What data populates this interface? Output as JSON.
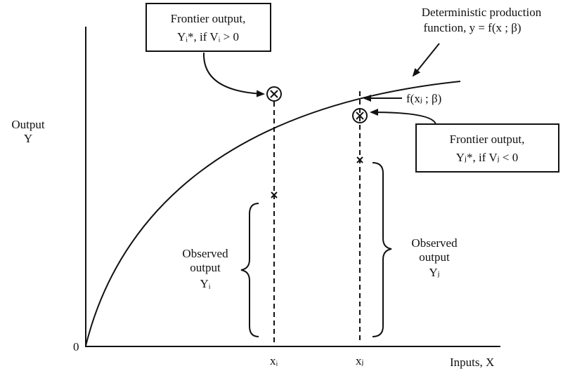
{
  "frontier_box_i": {
    "line1": "Frontier output,",
    "line2": "Yᵢ*, if Vᵢ > 0"
  },
  "deterministic_label": {
    "line1": "Deterministic production",
    "line2": "function, y = f(x ; β)"
  },
  "frontier_point_label": "f(xⱼ ; β)",
  "frontier_box_j": {
    "line1": "Frontier output,",
    "line2": "Yⱼ*, if Vⱼ < 0"
  },
  "y_axis_label": {
    "line1": "Output",
    "line2": "Y"
  },
  "observed_i": {
    "line1": "Observed",
    "line2": "output",
    "line3": "Yᵢ"
  },
  "observed_j": {
    "line1": "Observed",
    "line2": "output",
    "line3": "Yⱼ"
  },
  "origin_label": "0",
  "x_i_label": "xᵢ",
  "x_j_label": "xⱼ",
  "x_axis_label": "Inputs, X"
}
